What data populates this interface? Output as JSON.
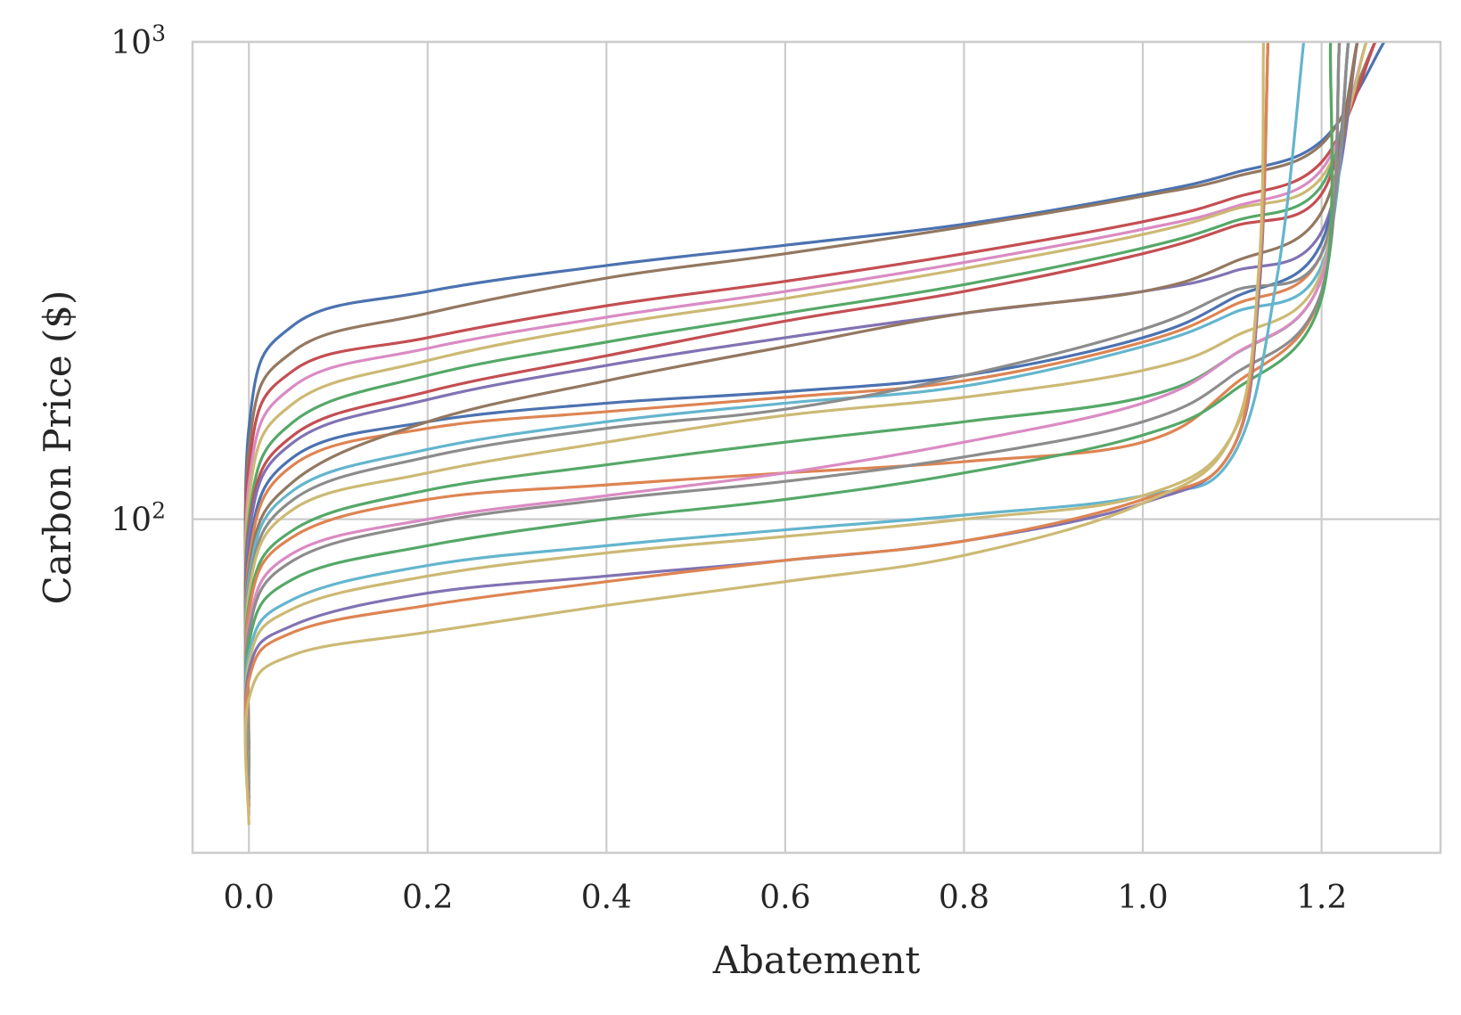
{
  "chart_data": {
    "type": "line",
    "title": "",
    "xlabel": "Abatement",
    "ylabel": "Carbon Price ($)",
    "xscale": "linear",
    "yscale": "log",
    "xlim": [
      -0.063,
      1.333
    ],
    "ylim": [
      20,
      1000
    ],
    "grid": true,
    "legend": "none",
    "x_ticks": [
      {
        "value": 0.0,
        "label": "0.0"
      },
      {
        "value": 0.2,
        "label": "0.2"
      },
      {
        "value": 0.4,
        "label": "0.4"
      },
      {
        "value": 0.6,
        "label": "0.6"
      },
      {
        "value": 0.8,
        "label": "0.8"
      },
      {
        "value": 1.0,
        "label": "1.0"
      },
      {
        "value": 1.2,
        "label": "1.2"
      }
    ],
    "y_ticks": [
      {
        "value": 100,
        "base": "10",
        "exponent": "2"
      },
      {
        "value": 1000,
        "base": "10",
        "exponent": "3"
      }
    ],
    "palette": [
      "#4c72b0",
      "#dd8452",
      "#55a868",
      "#c44e52",
      "#8172b3",
      "#937860",
      "#da8bc3",
      "#8c8c8c",
      "#ccb974",
      "#64b5cd"
    ],
    "series": [
      {
        "color": "#4c72b0",
        "x": [
          0,
          0.0,
          0.05,
          0.2,
          0.4,
          0.6,
          0.8,
          1.0,
          1.1,
          1.2,
          1.27
        ],
        "y": [
          34,
          155,
          255,
          300,
          340,
          375,
          415,
          480,
          530,
          620,
          1000
        ]
      },
      {
        "color": "#937860",
        "x": [
          0,
          0.0,
          0.05,
          0.2,
          0.4,
          0.6,
          0.8,
          1.0,
          1.1,
          1.2,
          1.26
        ],
        "y": [
          33,
          140,
          225,
          270,
          320,
          360,
          410,
          475,
          520,
          610,
          1000
        ]
      },
      {
        "color": "#c44e52",
        "x": [
          0,
          0.0,
          0.05,
          0.2,
          0.4,
          0.6,
          0.8,
          1.0,
          1.1,
          1.2,
          1.26
        ],
        "y": [
          32,
          128,
          205,
          240,
          280,
          315,
          360,
          420,
          470,
          560,
          1000
        ]
      },
      {
        "color": "#da8bc3",
        "x": [
          0,
          0.0,
          0.05,
          0.2,
          0.4,
          0.6,
          0.8,
          1.0,
          1.1,
          1.2,
          1.25
        ],
        "y": [
          32,
          118,
          190,
          228,
          265,
          300,
          345,
          405,
          450,
          540,
          1000
        ]
      },
      {
        "color": "#ccb974",
        "x": [
          0,
          0.0,
          0.05,
          0.2,
          0.4,
          0.6,
          0.8,
          1.0,
          1.1,
          1.2,
          1.25
        ],
        "y": [
          31,
          110,
          175,
          215,
          255,
          290,
          335,
          395,
          445,
          520,
          1000
        ]
      },
      {
        "color": "#55a868",
        "x": [
          0,
          0.0,
          0.05,
          0.2,
          0.4,
          0.6,
          0.8,
          1.0,
          1.1,
          1.2,
          1.24
        ],
        "y": [
          31,
          100,
          160,
          200,
          235,
          270,
          310,
          370,
          420,
          500,
          1000
        ]
      },
      {
        "color": "#c44e52",
        "x": [
          0,
          0.0,
          0.05,
          0.2,
          0.4,
          0.6,
          0.8,
          1.0,
          1.1,
          1.2,
          1.24
        ],
        "y": [
          30,
          95,
          150,
          185,
          220,
          260,
          300,
          360,
          410,
          480,
          1000
        ]
      },
      {
        "color": "#8172b3",
        "x": [
          0,
          0.0,
          0.05,
          0.2,
          0.4,
          0.6,
          0.8,
          1.0,
          1.1,
          1.2,
          1.24
        ],
        "y": [
          30,
          92,
          145,
          178,
          210,
          240,
          270,
          300,
          330,
          400,
          1000
        ]
      },
      {
        "color": "#4c72b0",
        "x": [
          0,
          0.0,
          0.05,
          0.2,
          0.4,
          0.6,
          0.8,
          1.0,
          1.1,
          1.2,
          1.23
        ],
        "y": [
          30,
          85,
          135,
          160,
          175,
          185,
          200,
          240,
          290,
          380,
          1000
        ]
      },
      {
        "color": "#dd8452",
        "x": [
          0,
          0.0,
          0.05,
          0.2,
          0.4,
          0.6,
          0.8,
          1.0,
          1.1,
          1.2,
          1.23
        ],
        "y": [
          30,
          82,
          130,
          155,
          168,
          180,
          195,
          235,
          280,
          360,
          1000
        ]
      },
      {
        "color": "#937860",
        "x": [
          0,
          0.0,
          0.05,
          0.2,
          0.4,
          0.6,
          0.8,
          1.0,
          1.1,
          1.2,
          1.24
        ],
        "y": [
          29,
          78,
          120,
          160,
          195,
          230,
          270,
          300,
          345,
          440,
          1000
        ]
      },
      {
        "color": "#64b5cd",
        "x": [
          0,
          0.0,
          0.05,
          0.2,
          0.4,
          0.6,
          0.8,
          1.0,
          1.1,
          1.2,
          1.23
        ],
        "y": [
          29,
          75,
          115,
          140,
          160,
          175,
          190,
          230,
          270,
          340,
          1000
        ]
      },
      {
        "color": "#8c8c8c",
        "x": [
          0,
          0.0,
          0.05,
          0.2,
          0.4,
          0.6,
          0.8,
          1.0,
          1.1,
          1.2,
          1.23
        ],
        "y": [
          29,
          72,
          110,
          135,
          155,
          170,
          200,
          250,
          300,
          360,
          1000
        ]
      },
      {
        "color": "#ccb974",
        "x": [
          0,
          0.0,
          0.05,
          0.2,
          0.4,
          0.6,
          0.8,
          1.0,
          1.1,
          1.2,
          1.22
        ],
        "y": [
          28,
          70,
          105,
          125,
          145,
          165,
          180,
          205,
          240,
          330,
          1000
        ]
      },
      {
        "color": "#55a868",
        "x": [
          0,
          0.0,
          0.05,
          0.2,
          0.4,
          0.6,
          0.8,
          1.0,
          1.1,
          1.2,
          1.22
        ],
        "y": [
          28,
          66,
          95,
          115,
          130,
          145,
          160,
          180,
          220,
          320,
          1000
        ]
      },
      {
        "color": "#dd8452",
        "x": [
          0,
          0.0,
          0.05,
          0.2,
          0.4,
          0.6,
          0.8,
          1.0,
          1.1,
          1.2,
          1.21
        ],
        "y": [
          27,
          64,
          92,
          110,
          118,
          125,
          132,
          145,
          190,
          300,
          1000
        ]
      },
      {
        "color": "#da8bc3",
        "x": [
          0,
          0.0,
          0.05,
          0.2,
          0.4,
          0.6,
          0.8,
          1.0,
          1.1,
          1.2,
          1.22
        ],
        "y": [
          27,
          60,
          85,
          100,
          112,
          125,
          145,
          175,
          220,
          320,
          1000
        ]
      },
      {
        "color": "#8c8c8c",
        "x": [
          0,
          0.0,
          0.05,
          0.2,
          0.4,
          0.6,
          0.8,
          1.0,
          1.1,
          1.2,
          1.22
        ],
        "y": [
          27,
          58,
          82,
          98,
          110,
          120,
          135,
          160,
          200,
          300,
          1000
        ]
      },
      {
        "color": "#55a868",
        "x": [
          0,
          0.0,
          0.05,
          0.2,
          0.4,
          0.6,
          0.8,
          1.0,
          1.1,
          1.2,
          1.21
        ],
        "y": [
          26,
          55,
          75,
          88,
          100,
          110,
          125,
          150,
          185,
          290,
          1000
        ]
      },
      {
        "color": "#64b5cd",
        "x": [
          0,
          0.0,
          0.05,
          0.2,
          0.4,
          0.6,
          0.8,
          1.0,
          1.1,
          1.15,
          1.18
        ],
        "y": [
          26,
          52,
          68,
          80,
          88,
          95,
          102,
          112,
          135,
          320,
          1000
        ]
      },
      {
        "color": "#ccb974",
        "x": [
          0,
          0.0,
          0.05,
          0.2,
          0.4,
          0.6,
          0.8,
          1.0,
          1.1,
          1.13,
          1.14
        ],
        "y": [
          25,
          50,
          65,
          76,
          85,
          92,
          100,
          112,
          150,
          300,
          1000
        ]
      },
      {
        "color": "#8172b3",
        "x": [
          0,
          0.0,
          0.05,
          0.2,
          0.4,
          0.6,
          0.8,
          1.0,
          1.1,
          1.13,
          1.14
        ],
        "y": [
          25,
          48,
          60,
          70,
          76,
          82,
          90,
          108,
          140,
          300,
          1000
        ]
      },
      {
        "color": "#dd8452",
        "x": [
          0,
          0.0,
          0.05,
          0.2,
          0.4,
          0.6,
          0.8,
          1.0,
          1.1,
          1.13,
          1.14
        ],
        "y": [
          24,
          46,
          58,
          66,
          74,
          82,
          90,
          110,
          140,
          320,
          1000
        ]
      },
      {
        "color": "#ccb974",
        "x": [
          0,
          0.0,
          0.05,
          0.2,
          0.4,
          0.6,
          0.8,
          1.0,
          1.1,
          1.13,
          1.135
        ],
        "y": [
          23,
          42,
          52,
          58,
          66,
          74,
          84,
          108,
          150,
          340,
          1000
        ]
      }
    ]
  }
}
